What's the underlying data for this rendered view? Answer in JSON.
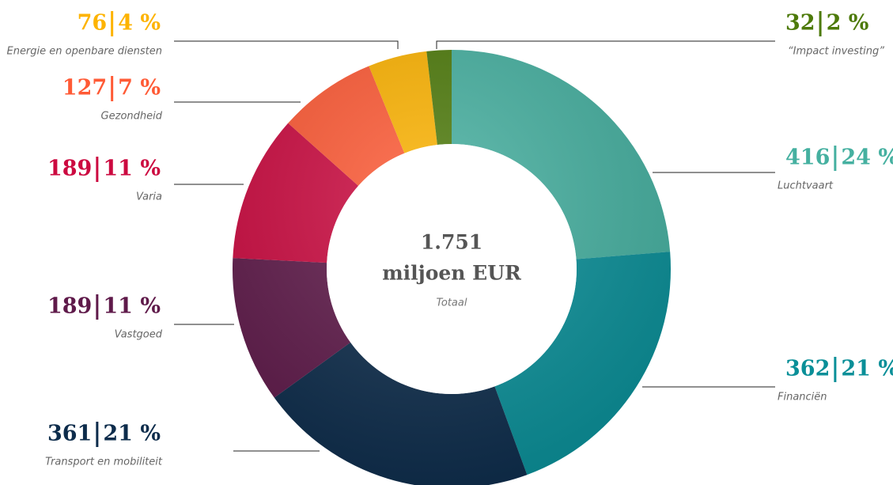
{
  "chart_data": {
    "type": "pie",
    "donut": true,
    "categories": [
      "Luchtvaart",
      "Financiën",
      "Transport en mobiliteit",
      "Vastgoed",
      "Varia",
      "Gezondheid",
      "Energie en openbare diensten",
      "“Impact investing”"
    ],
    "values": [
      416,
      362,
      361,
      189,
      189,
      127,
      76,
      32
    ],
    "percent_labels": [
      "24 %",
      "21 %",
      "21 %",
      "11 %",
      "11 %",
      "7 %",
      "4 %",
      "2 %"
    ],
    "colors": [
      "#45b0a0",
      "#0a8f98",
      "#0d2c4b",
      "#5f1a4a",
      "#cc0a40",
      "#ff5a35",
      "#fdb300",
      "#4d7a0a"
    ],
    "center": {
      "total": "1.751",
      "unit": "miljoen EUR",
      "caption": "Totaal"
    }
  }
}
